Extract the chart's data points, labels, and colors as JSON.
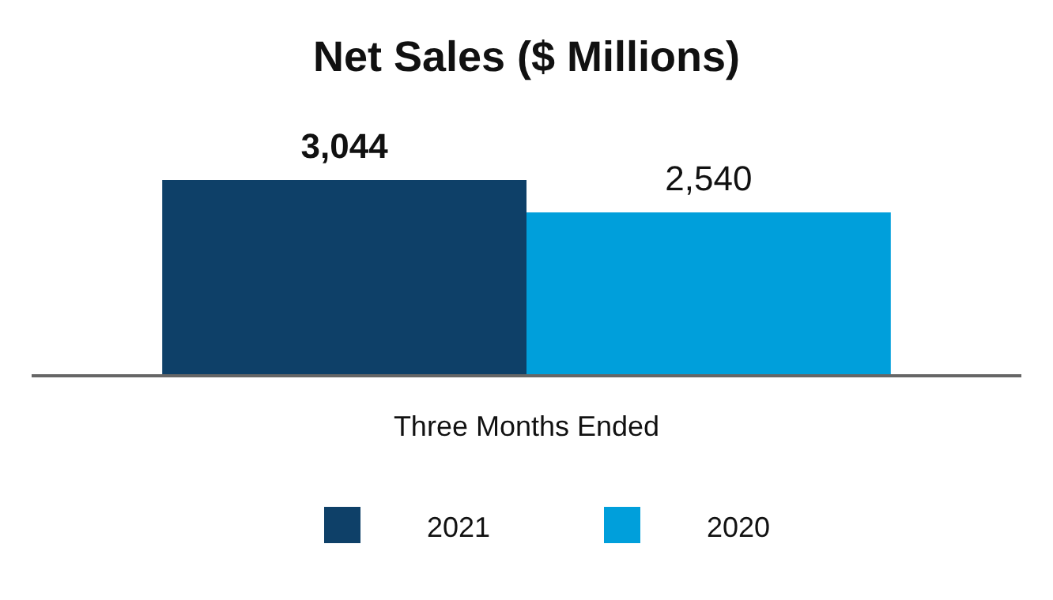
{
  "chart_data": {
    "type": "bar",
    "title": "Net Sales ($ Millions)",
    "xlabel": "Three Months Ended",
    "categories": [
      null
    ],
    "series": [
      {
        "name": "2021",
        "color": "#0e4068",
        "values": [
          3044
        ],
        "value_labels": [
          "3,044"
        ]
      },
      {
        "name": "2020",
        "color": "#009fdb",
        "values": [
          2540
        ],
        "value_labels": [
          "2,540"
        ]
      }
    ],
    "legend": "bottom"
  }
}
